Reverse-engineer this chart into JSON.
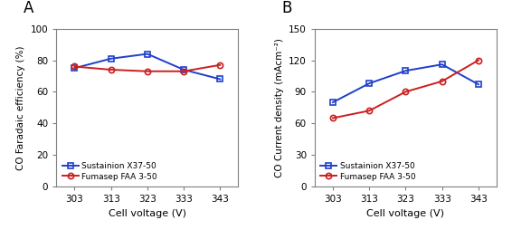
{
  "x": [
    303,
    313,
    323,
    333,
    343
  ],
  "panel_A": {
    "label": "A",
    "sustainion_y": [
      75,
      81,
      84,
      74,
      68
    ],
    "fumasep_y": [
      76,
      74,
      73,
      73,
      77
    ],
    "ylabel": "CO Faradaic efficiency (%)",
    "xlabel": "Cell voltage (V)",
    "ylim": [
      0,
      100
    ],
    "yticks": [
      0,
      20,
      40,
      60,
      80,
      100
    ]
  },
  "panel_B": {
    "label": "B",
    "sustainion_y": [
      80,
      98,
      110,
      116,
      97
    ],
    "fumasep_y": [
      65,
      72,
      90,
      100,
      120
    ],
    "ylabel": "CO Current density (mAcm⁻²)",
    "xlabel": "Cell voltage (V)",
    "ylim": [
      0,
      150
    ],
    "yticks": [
      0,
      30,
      60,
      90,
      120,
      150
    ]
  },
  "sustainion_label": "Sustainion X37-50",
  "fumasep_label": "Fumasep FAA 3-50",
  "blue_color": "#1f3fcc",
  "red_color": "#cc1f1f",
  "marker_blue": "s",
  "marker_red": "o",
  "markersize": 4.5,
  "linewidth": 1.4,
  "label_fontsize": 12,
  "axis_fontsize": 8,
  "tick_fontsize": 7.5,
  "legend_fontsize": 6.5
}
